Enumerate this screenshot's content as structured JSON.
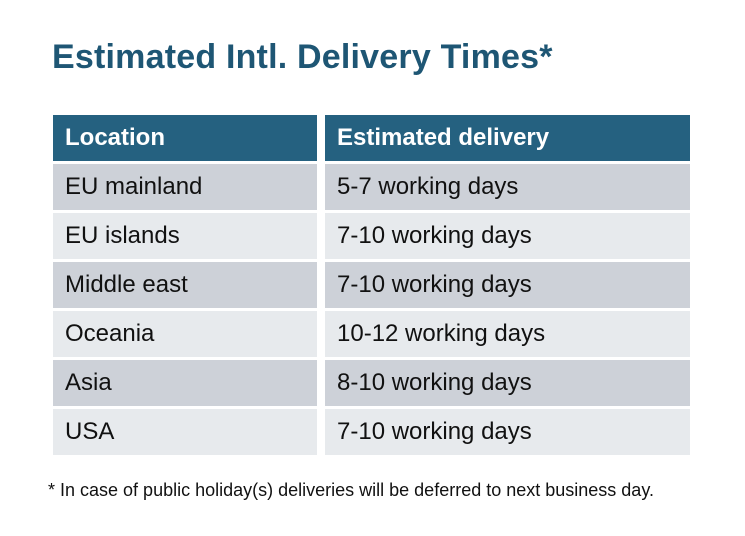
{
  "page": {
    "title": "Estimated Intl. Delivery Times*",
    "footnote": "* In case of public holiday(s) deliveries will be deferred to next business day."
  },
  "table": {
    "columns": [
      "Location",
      "Estimated delivery"
    ],
    "rows": [
      {
        "location": "EU mainland",
        "delivery": "5-7 working days"
      },
      {
        "location": "EU islands",
        "delivery": "7-10 working days"
      },
      {
        "location": "Middle east",
        "delivery": "7-10 working days"
      },
      {
        "location": "Oceania",
        "delivery": "10-12 working days"
      },
      {
        "location": "Asia",
        "delivery": "8-10 working days"
      },
      {
        "location": "USA",
        "delivery": "7-10 working days"
      }
    ]
  },
  "colors": {
    "title_text": "#1e5674",
    "header_bg": "#256180",
    "header_text": "#ffffff",
    "row_dark": "#cdd1d8",
    "row_light": "#e7eaed",
    "body_text": "#111111",
    "page_bg": "#ffffff"
  }
}
